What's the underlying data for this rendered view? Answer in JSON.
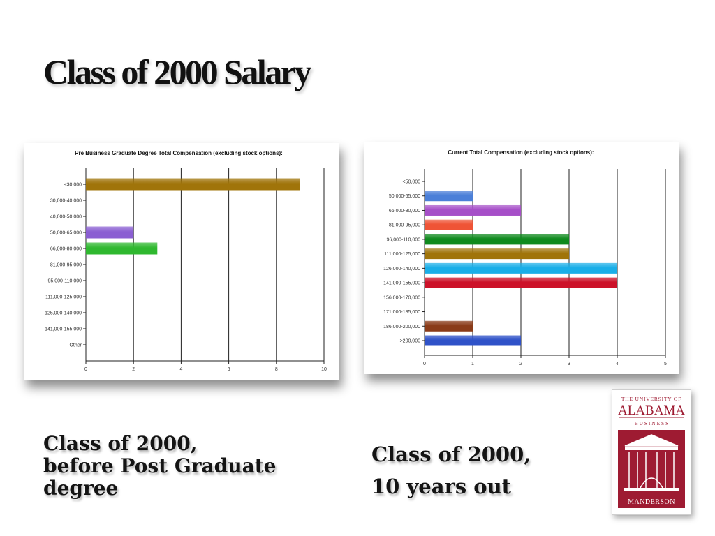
{
  "title": "Class of 2000 Salary",
  "captions": {
    "left": [
      "Class of 2000,",
      "before Post Graduate",
      "degree"
    ],
    "right": [
      "Class of 2000,",
      "10 years out"
    ]
  },
  "logo": {
    "top_text": "THE UNIVERSITY OF",
    "name": "ALABAMA",
    "sub": "B U S I N E S S",
    "bottom": "MANDERSON"
  },
  "chart_data": [
    {
      "type": "bar",
      "orientation": "horizontal",
      "title": "Pre Business Graduate Degree Total Compensation (excluding stock options):",
      "categories": [
        "<30,000",
        "30,000-40,000",
        "40,000-50,000",
        "50,000-65,000",
        "66,000-80,000",
        "81,000-95,000",
        "95,000-110,000",
        "111,000-125,000",
        "125,000-140,000",
        "141,000-155,000",
        "Other"
      ],
      "values": [
        9,
        0,
        0,
        2,
        3,
        0,
        0,
        0,
        0,
        0,
        0
      ],
      "colors": [
        "#a0740a",
        "#a0740a",
        "#a0740a",
        "#8a5ed2",
        "#2fb82f",
        "#a0740a",
        "#a0740a",
        "#a0740a",
        "#a0740a",
        "#a0740a",
        "#a0740a"
      ],
      "xlim": [
        0,
        10
      ],
      "xticks": [
        "0",
        "2",
        "4",
        "6",
        "8",
        "10"
      ],
      "grid": true
    },
    {
      "type": "bar",
      "orientation": "horizontal",
      "title": "Current Total Compensation (excluding stock options):",
      "categories": [
        "<50,000",
        "50,000-65,000",
        "66,000-80,000",
        "81,000-95,000",
        "96,000-110,000",
        "111,000-125,000",
        "126,000-140,000",
        "141,000-155,000",
        "156,000-170,000",
        "171,000-185,000",
        "186,000-200,000",
        ">200,000"
      ],
      "values": [
        0,
        1,
        2,
        1,
        3,
        3,
        4,
        4,
        0,
        0,
        1,
        2
      ],
      "colors": [
        "#4b7fd8",
        "#4b7fd8",
        "#a64fc8",
        "#ef5436",
        "#0f8a1e",
        "#a0740a",
        "#19aee8",
        "#cc1229",
        "#4b7fd8",
        "#4b7fd8",
        "#8a3b18",
        "#2f52c8"
      ],
      "xlim": [
        0,
        5
      ],
      "xticks": [
        "0",
        "1",
        "2",
        "3",
        "4",
        "5"
      ],
      "grid": true
    }
  ]
}
